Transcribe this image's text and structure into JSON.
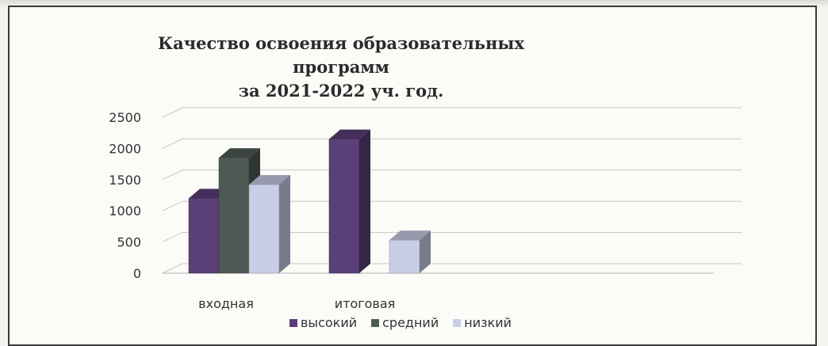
{
  "chart_data": {
    "type": "bar",
    "title_lines": [
      "Качество освоения образовательных программ",
      "за 2021-2022 уч. год."
    ],
    "categories": [
      "входная",
      "итоговая"
    ],
    "series": [
      {
        "name": "высокий",
        "values": [
          1200,
          2150
        ],
        "color": "#5a3f78"
      },
      {
        "name": "средний",
        "values": [
          1850,
          0
        ],
        "color": "#4f5a55"
      },
      {
        "name": "низкий",
        "values": [
          1420,
          530
        ],
        "color": "#c9cde6"
      }
    ],
    "yticks": [
      "0",
      "500",
      "1000",
      "1500",
      "2000",
      "2500"
    ],
    "ylim": [
      0,
      2500
    ],
    "grid": true,
    "legend_position": "bottom"
  }
}
